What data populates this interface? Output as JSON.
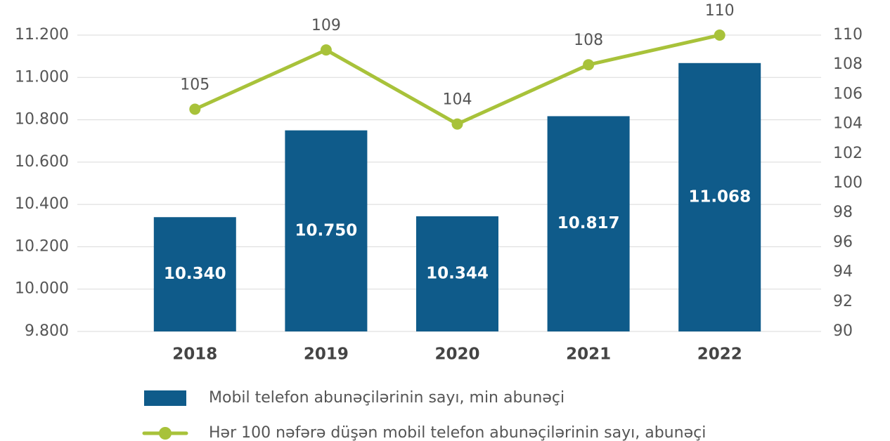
{
  "chart_data": {
    "type": "bar",
    "categories": [
      "2018",
      "2019",
      "2020",
      "2021",
      "2022"
    ],
    "series": [
      {
        "name": "Mobil telefon abunəçilərinin sayı, min abunəçi",
        "type": "bar",
        "color": "#0f5b8a",
        "values": [
          10340,
          10750,
          10344,
          10817,
          11068
        ],
        "value_labels": [
          "10.340",
          "10.750",
          "10.344",
          "10.817",
          "11.068"
        ]
      },
      {
        "name": "Hər 100 nəfərə düşən mobil telefon abunəçilərinin sayı, abunəçi",
        "type": "line",
        "axis": "y2",
        "color": "#a8c23a",
        "values": [
          105,
          109,
          104,
          108,
          110
        ]
      }
    ],
    "ylim": [
      9800,
      11200
    ],
    "yticks": [
      {
        "value": 9800,
        "label": "9.800"
      },
      {
        "value": 10000,
        "label": "10.000"
      },
      {
        "value": 10200,
        "label": "10.200"
      },
      {
        "value": 10400,
        "label": "10.400"
      },
      {
        "value": 10600,
        "label": "10.600"
      },
      {
        "value": 10800,
        "label": "10.800"
      },
      {
        "value": 11000,
        "label": "11.000"
      },
      {
        "value": 11200,
        "label": "11.200"
      }
    ],
    "y2lim": [
      90,
      110
    ],
    "y2ticks": [
      90,
      92,
      94,
      96,
      98,
      100,
      102,
      104,
      106,
      108,
      110
    ],
    "grid": true
  }
}
